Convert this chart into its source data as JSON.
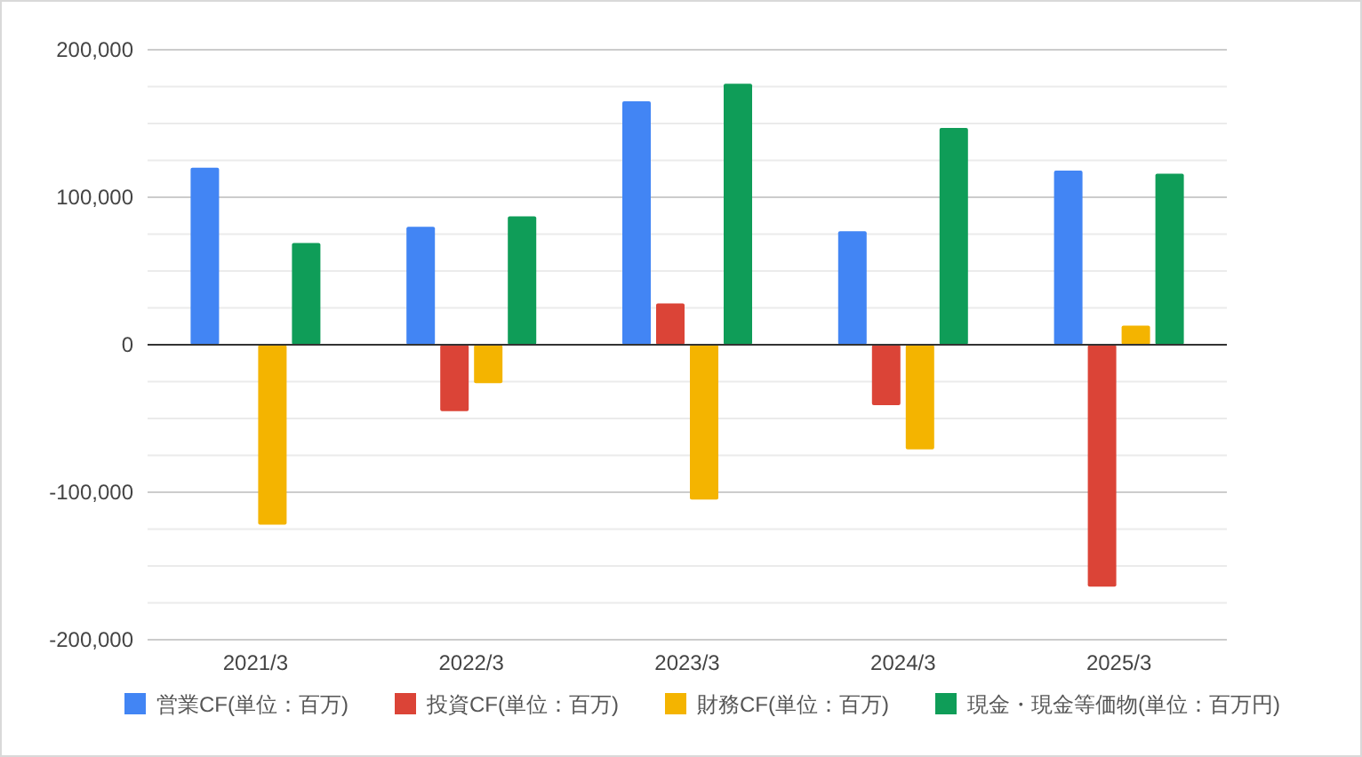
{
  "chart_data": {
    "type": "bar",
    "categories": [
      "2021/3",
      "2022/3",
      "2023/3",
      "2024/3",
      "2025/3"
    ],
    "series": [
      {
        "name": "営業CF(単位：百万)",
        "color": "#4285f4",
        "values": [
          120000,
          80000,
          165000,
          77000,
          118000
        ]
      },
      {
        "name": "投資CF(単位：百万)",
        "color": "#db4437",
        "values": [
          null,
          -45000,
          28000,
          -41000,
          -164000
        ]
      },
      {
        "name": "財務CF(単位：百万)",
        "color": "#f4b400",
        "values": [
          -122000,
          -26000,
          -105000,
          -71000,
          13000
        ]
      },
      {
        "name": "現金・現金等価物(単位：百万円)",
        "color": "#0f9d58",
        "values": [
          69000,
          87000,
          177000,
          147000,
          116000
        ]
      }
    ],
    "ylim": [
      -200000,
      200000
    ],
    "yticks": [
      {
        "value": -200000,
        "label": "-200,000"
      },
      {
        "value": -175000,
        "label": null
      },
      {
        "value": -150000,
        "label": null
      },
      {
        "value": -125000,
        "label": null
      },
      {
        "value": -100000,
        "label": "-100,000"
      },
      {
        "value": -75000,
        "label": null
      },
      {
        "value": -50000,
        "label": null
      },
      {
        "value": -25000,
        "label": null
      },
      {
        "value": 0,
        "label": "0"
      },
      {
        "value": 25000,
        "label": null
      },
      {
        "value": 50000,
        "label": null
      },
      {
        "value": 75000,
        "label": null
      },
      {
        "value": 100000,
        "label": "100,000"
      },
      {
        "value": 125000,
        "label": null
      },
      {
        "value": 150000,
        "label": null
      },
      {
        "value": 175000,
        "label": null
      },
      {
        "value": 200000,
        "label": "200,000"
      }
    ],
    "grid": "y",
    "legend": "bottom"
  }
}
